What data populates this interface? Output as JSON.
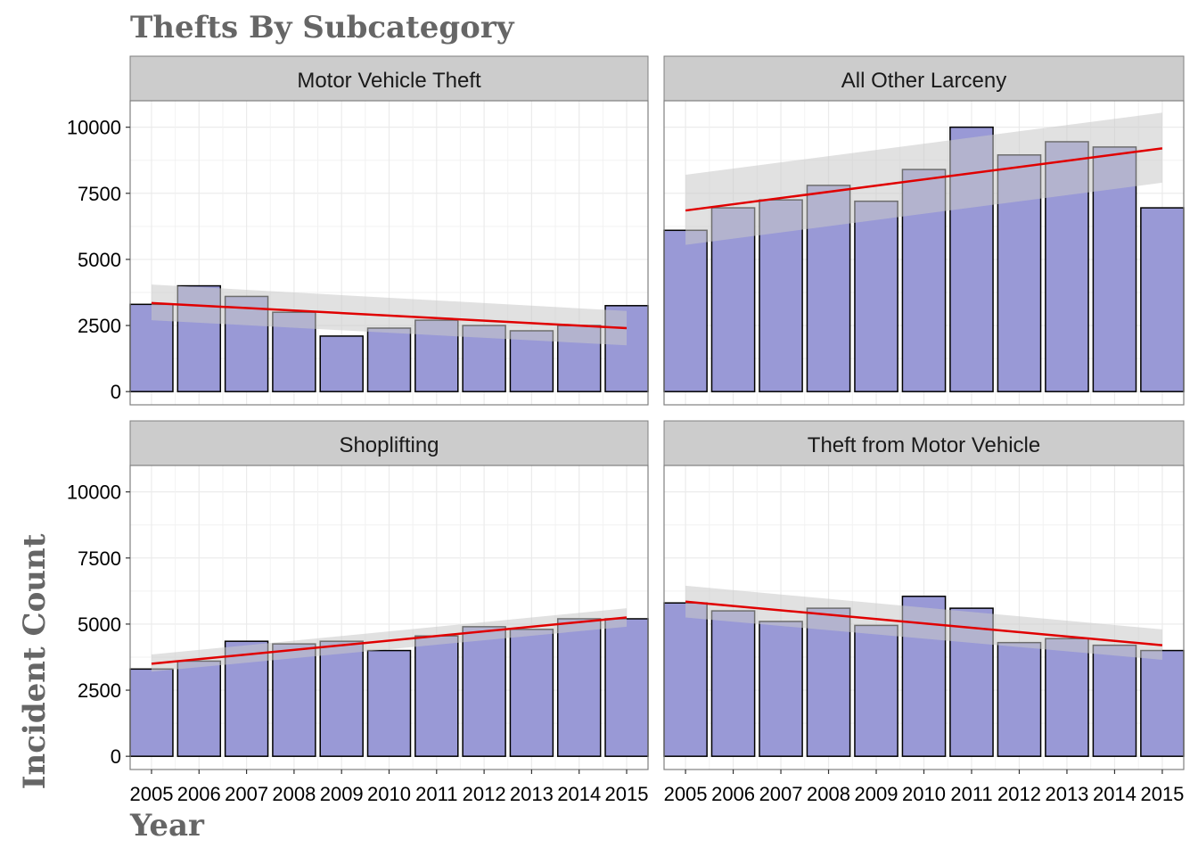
{
  "chart_data": {
    "type": "bar",
    "title": "Thefts By Subcategory",
    "xlabel": "Year",
    "ylabel": "Incident Count",
    "ylim": [
      -500,
      11000
    ],
    "yticks": [
      0,
      2500,
      5000,
      7500,
      10000
    ],
    "grid": true,
    "facet_layout": "2x2",
    "categories": [
      "2005",
      "2006",
      "2007",
      "2008",
      "2009",
      "2010",
      "2011",
      "2012",
      "2013",
      "2014",
      "2015"
    ],
    "colors": {
      "bar_fill": "#9999d6",
      "bar_stroke": "#000000",
      "trend_line": "#e00000",
      "confidence_band": "#c8c8c8",
      "strip_bg": "#cccccc",
      "grid": "#ebebeb"
    },
    "series": [
      {
        "name": "Motor Vehicle Theft",
        "values": [
          3300,
          4000,
          3600,
          3000,
          2100,
          2400,
          2700,
          2500,
          2300,
          2500,
          3250
        ],
        "trend": {
          "start": 3350,
          "end": 2400,
          "band_start": [
            2700,
            4050
          ],
          "band_end": [
            1750,
            3050
          ]
        }
      },
      {
        "name": "All Other Larceny",
        "values": [
          6100,
          6950,
          7250,
          7800,
          7200,
          8400,
          10000,
          8950,
          9450,
          9250,
          6950
        ],
        "trend": {
          "start": 6850,
          "end": 9200,
          "band_start": [
            5550,
            8200
          ],
          "band_end": [
            7900,
            10550
          ]
        }
      },
      {
        "name": "Shoplifting",
        "values": [
          3300,
          3600,
          4350,
          4250,
          4350,
          4000,
          4550,
          4900,
          4800,
          5200,
          5200
        ],
        "trend": {
          "start": 3500,
          "end": 5250,
          "band_start": [
            3200,
            3850
          ],
          "band_end": [
            4900,
            5600
          ]
        }
      },
      {
        "name": "Theft from Motor Vehicle",
        "values": [
          5800,
          5500,
          5100,
          5600,
          4950,
          6050,
          5600,
          4300,
          4450,
          4200,
          4000
        ],
        "trend": {
          "start": 5850,
          "end": 4200,
          "band_start": [
            5250,
            6450
          ],
          "band_end": [
            3650,
            4800
          ]
        }
      }
    ]
  }
}
